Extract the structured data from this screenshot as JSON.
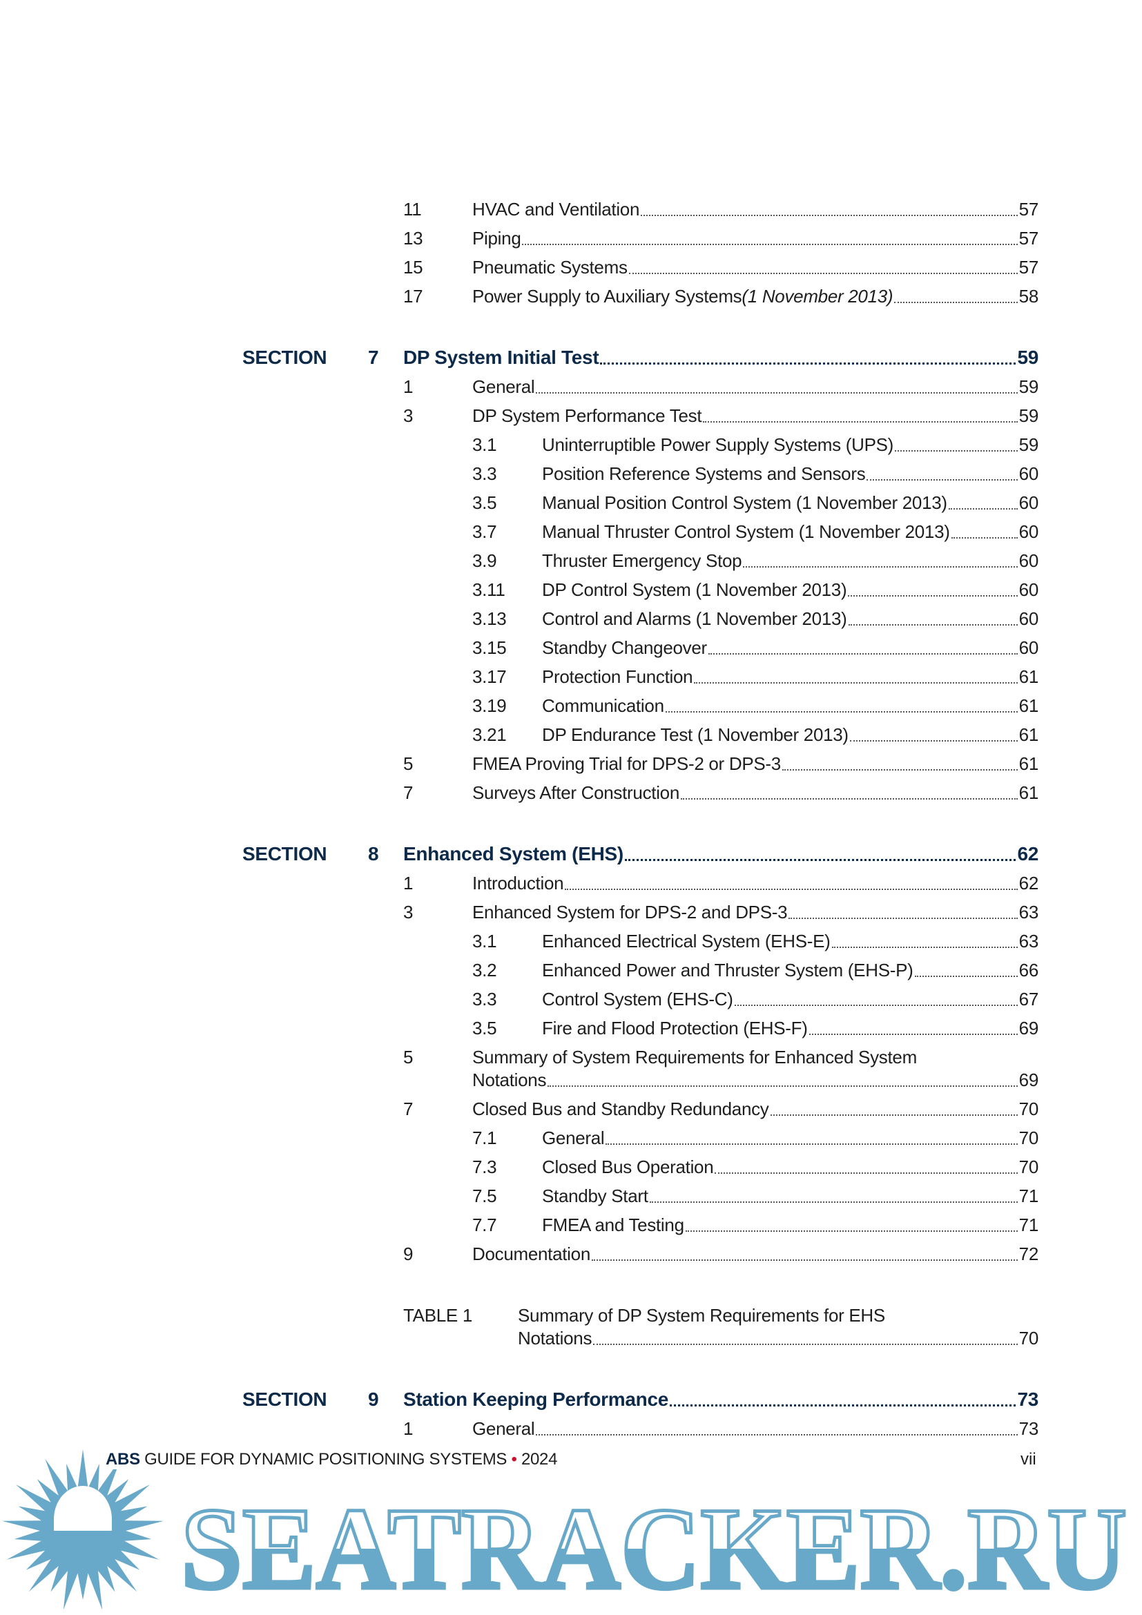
{
  "entries": [
    {
      "type": "l1",
      "num": "11",
      "title": "HVAC and Ventilation",
      "page": "57"
    },
    {
      "type": "l1",
      "num": "13",
      "title": "Piping",
      "page": "57"
    },
    {
      "type": "l1",
      "num": "15",
      "title": "Pneumatic Systems",
      "page": "57"
    },
    {
      "type": "l1",
      "num": "17",
      "title": "Power Supply to Auxiliary Systems ",
      "italic": "(1 November 2013)",
      "page": "58"
    },
    {
      "type": "section",
      "label": "SECTION",
      "num": "7",
      "title": "DP System Initial Test",
      "page": "59"
    },
    {
      "type": "l1",
      "num": "1",
      "title": "General",
      "page": "59"
    },
    {
      "type": "l1",
      "num": "3",
      "title": "DP System Performance Test",
      "page": "59"
    },
    {
      "type": "l2",
      "num": "3.1",
      "title": "Uninterruptible Power Supply Systems (UPS)",
      "page": "59"
    },
    {
      "type": "l2",
      "num": "3.3",
      "title": "Position Reference Systems and Sensors",
      "page": "60"
    },
    {
      "type": "l2",
      "num": "3.5",
      "title": "Manual Position Control System (1 November 2013)",
      "page": "60"
    },
    {
      "type": "l2",
      "num": "3.7",
      "title": "Manual Thruster Control System (1 November 2013)",
      "page": "60"
    },
    {
      "type": "l2",
      "num": "3.9",
      "title": "Thruster Emergency Stop",
      "page": "60"
    },
    {
      "type": "l2",
      "num": "3.11",
      "title": "DP Control System (1 November 2013)",
      "page": "60"
    },
    {
      "type": "l2",
      "num": "3.13",
      "title": "Control and Alarms (1 November 2013)",
      "page": "60"
    },
    {
      "type": "l2",
      "num": "3.15",
      "title": "Standby Changeover",
      "page": "60"
    },
    {
      "type": "l2",
      "num": "3.17",
      "title": "Protection Function",
      "page": "61"
    },
    {
      "type": "l2",
      "num": "3.19",
      "title": "Communication",
      "page": "61"
    },
    {
      "type": "l2",
      "num": "3.21",
      "title": "DP Endurance Test (1 November 2013)",
      "page": "61"
    },
    {
      "type": "l1",
      "num": "5",
      "title": "FMEA Proving Trial for DPS-2 or DPS-3",
      "page": "61"
    },
    {
      "type": "l1",
      "num": "7",
      "title": "Surveys After Construction",
      "page": "61"
    },
    {
      "type": "section",
      "label": "SECTION",
      "num": "8",
      "title": "Enhanced System (EHS) ",
      "page": "62"
    },
    {
      "type": "l1",
      "num": "1",
      "title": "Introduction",
      "page": "62"
    },
    {
      "type": "l1",
      "num": "3",
      "title": "Enhanced System for DPS-2 and DPS-3",
      "page": "63"
    },
    {
      "type": "l2",
      "num": "3.1",
      "title": "Enhanced Electrical System (EHS-E)",
      "page": "63"
    },
    {
      "type": "l2",
      "num": "3.2",
      "title": "Enhanced Power and Thruster System (EHS-P)",
      "page": "66"
    },
    {
      "type": "l2",
      "num": "3.3",
      "title": "Control System (EHS-C)",
      "page": "67"
    },
    {
      "type": "l2",
      "num": "3.5",
      "title": "Fire and Flood Protection (EHS-F)",
      "page": "69"
    },
    {
      "type": "l1",
      "num": "5",
      "title": "Summary of System Requirements for Enhanced System",
      "cont": "Notations",
      "page": "69"
    },
    {
      "type": "l1",
      "num": "7",
      "title": "Closed Bus and Standby Redundancy",
      "page": "70"
    },
    {
      "type": "l2",
      "num": "7.1",
      "title": "General",
      "page": "70"
    },
    {
      "type": "l2",
      "num": "7.3",
      "title": "Closed Bus Operation",
      "page": "70"
    },
    {
      "type": "l2",
      "num": "7.5",
      "title": "Standby Start",
      "page": "71"
    },
    {
      "type": "l2",
      "num": "7.7",
      "title": "FMEA and Testing",
      "page": "71"
    },
    {
      "type": "l1",
      "num": "9",
      "title": "Documentation ",
      "page": "72"
    },
    {
      "type": "table",
      "label": "TABLE 1",
      "title": "Summary of DP System Requirements for EHS",
      "cont": "Notations ",
      "page": "70"
    },
    {
      "type": "section",
      "label": "SECTION",
      "num": "9",
      "title": "Station Keeping Performance",
      "page": "73"
    },
    {
      "type": "l1",
      "num": "1",
      "title": "General ",
      "page": "73"
    }
  ],
  "footer": {
    "brand": "ABS",
    "title": " GUIDE FOR DYNAMIC POSITIONING SYSTEMS",
    "bullet": "•",
    "year": " 2024",
    "page_number": "vii"
  },
  "watermark": {
    "text": "SEATRACKER.RU",
    "color": "#68a8c8"
  },
  "colors": {
    "heading": "#0d2a4a",
    "body": "#1e1e1e",
    "footer_bullet": "#c8102e"
  }
}
